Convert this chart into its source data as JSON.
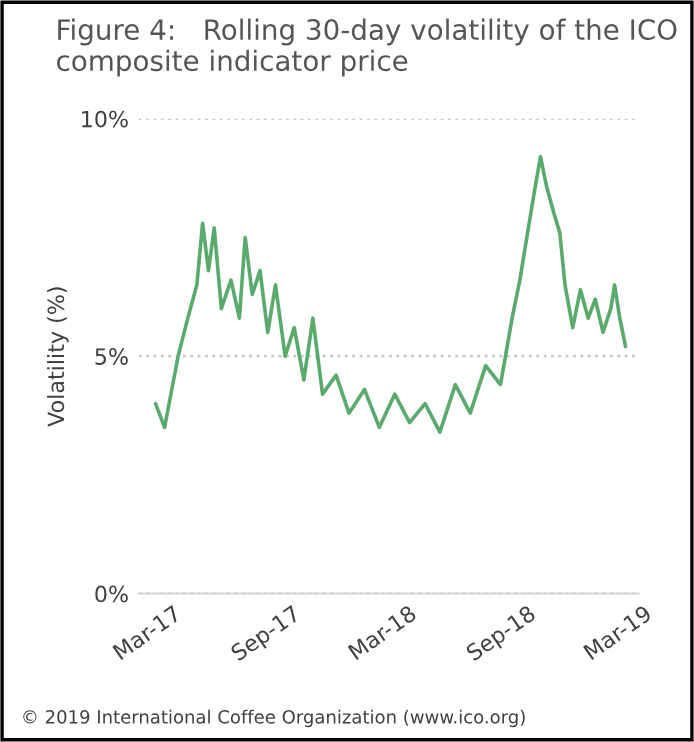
{
  "chart_data": {
    "type": "line",
    "title": "Figure 4:   Rolling 30-day volatility of the ICO composite indicator price",
    "ylabel": "Volatility (%)",
    "annotations": [
      "© 2019 International Coffee Organization (www.ico.org)"
    ],
    "series": [
      {
        "color": "#5aaa6e",
        "x": [
          "2017-03-13",
          "2017-03-27",
          "2017-04-17",
          "2017-05-02",
          "2017-05-16",
          "2017-05-25",
          "2017-06-03",
          "2017-06-12",
          "2017-06-23",
          "2017-07-08",
          "2017-07-21",
          "2017-07-30",
          "2017-08-10",
          "2017-08-22",
          "2017-09-03",
          "2017-09-15",
          "2017-09-30",
          "2017-10-14",
          "2017-10-29",
          "2017-11-12",
          "2017-11-27",
          "2017-12-18",
          "2018-01-07",
          "2018-01-31",
          "2018-02-23",
          "2018-03-19",
          "2018-04-11",
          "2018-05-05",
          "2018-05-28",
          "2018-06-21",
          "2018-07-14",
          "2018-08-07",
          "2018-08-30",
          "2018-09-17",
          "2018-09-29",
          "2018-10-11",
          "2018-10-22",
          "2018-10-31",
          "2018-11-09",
          "2018-11-21",
          "2018-11-30",
          "2018-12-08",
          "2018-12-20",
          "2019-01-01",
          "2019-01-13",
          "2019-01-24",
          "2019-02-05",
          "2019-02-17",
          "2019-02-23",
          "2019-03-03",
          "2019-03-12"
        ],
        "values": [
          4.0,
          3.5,
          5.0,
          5.8,
          6.5,
          7.8,
          6.8,
          7.7,
          6.0,
          6.6,
          5.8,
          7.5,
          6.3,
          6.8,
          5.5,
          6.5,
          5.0,
          5.6,
          4.5,
          5.8,
          4.2,
          4.6,
          3.8,
          4.3,
          3.5,
          4.2,
          3.6,
          4.0,
          3.4,
          4.4,
          3.8,
          4.8,
          4.4,
          5.8,
          6.6,
          7.6,
          8.5,
          9.2,
          8.6,
          8.0,
          7.6,
          6.5,
          5.6,
          6.4,
          5.8,
          6.2,
          5.5,
          6.0,
          6.5,
          5.8,
          5.2
        ]
      }
    ],
    "xlim": [
      "2017-02-15",
      "2019-04-01"
    ],
    "xticks": [
      {
        "value": "2017-03-01",
        "label": "Mar-17"
      },
      {
        "value": "2017-09-01",
        "label": "Sep-17"
      },
      {
        "value": "2018-03-01",
        "label": "Mar-18"
      },
      {
        "value": "2018-09-01",
        "label": "Sep-18"
      },
      {
        "value": "2019-03-01",
        "label": "Mar-19"
      }
    ],
    "ylim": [
      0,
      10
    ],
    "yticks": [
      {
        "value": 0,
        "label": "0%"
      },
      {
        "value": 5,
        "label": "5%"
      },
      {
        "value": 10,
        "label": "10%"
      }
    ],
    "grid": "y",
    "legend": false,
    "marker": "none",
    "line_style": "solid"
  }
}
